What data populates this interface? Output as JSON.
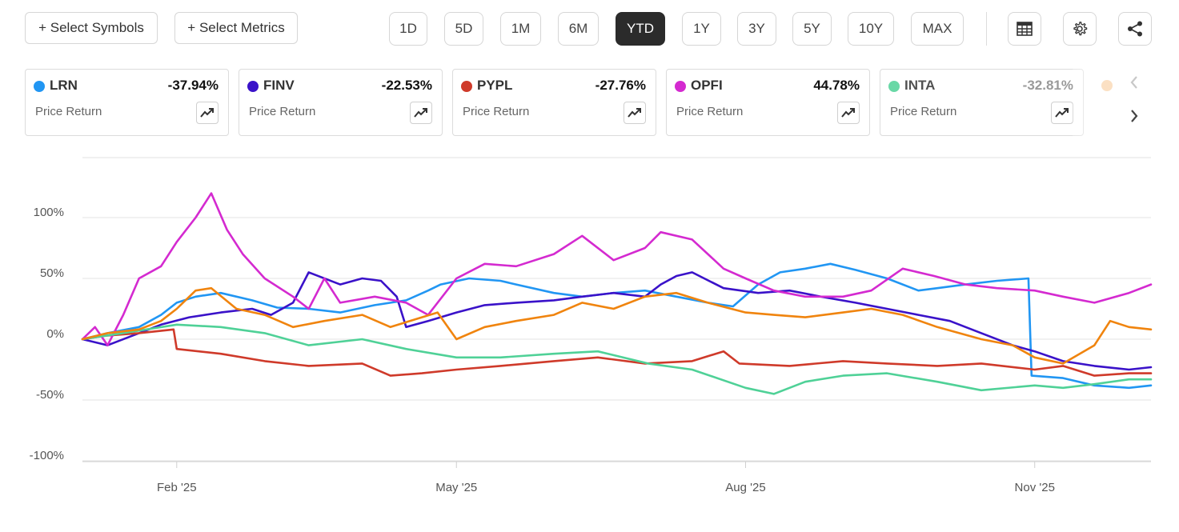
{
  "toolbar": {
    "select_symbols": "+ Select Symbols",
    "select_metrics": "+ Select Metrics",
    "ranges": [
      "1D",
      "5D",
      "1M",
      "6M",
      "YTD",
      "1Y",
      "3Y",
      "5Y",
      "10Y",
      "MAX"
    ],
    "active_range": "YTD",
    "icons": [
      "table-icon",
      "gear-icon",
      "share-icon"
    ]
  },
  "cards": [
    {
      "symbol": "LRN",
      "value": "-37.94%",
      "metric": "Price Return",
      "color": "#2196f3"
    },
    {
      "symbol": "FINV",
      "value": "-22.53%",
      "metric": "Price Return",
      "color": "#3a12c9"
    },
    {
      "symbol": "PYPL",
      "value": "-27.76%",
      "metric": "Price Return",
      "color": "#cf3a2a"
    },
    {
      "symbol": "OPFI",
      "value": "44.78%",
      "metric": "Price Return",
      "color": "#d42ad0"
    },
    {
      "symbol": "INTA",
      "value": "-32.81%",
      "metric": "Price Return",
      "color": "#4fd197"
    }
  ],
  "chart_data": {
    "type": "line",
    "y_ticks": [
      "100%",
      "50%",
      "0%",
      "-50%",
      "-100%"
    ],
    "x_ticks": [
      "Feb '25",
      "May '25",
      "Aug '25",
      "Nov '25"
    ],
    "ylim": [
      -100,
      150
    ],
    "xlim": [
      "2025-01-02",
      "2025-12-08"
    ],
    "legend": "none",
    "grid": "horizontal",
    "series": [
      {
        "name": "LRN",
        "color": "#2196f3",
        "points": [
          [
            "2025-01-02",
            0
          ],
          [
            "2025-01-10",
            5
          ],
          [
            "2025-01-20",
            10
          ],
          [
            "2025-01-27",
            20
          ],
          [
            "2025-02-01",
            30
          ],
          [
            "2025-02-07",
            35
          ],
          [
            "2025-02-15",
            38
          ],
          [
            "2025-02-25",
            32
          ],
          [
            "2025-03-05",
            26
          ],
          [
            "2025-03-15",
            25
          ],
          [
            "2025-03-25",
            22
          ],
          [
            "2025-04-05",
            28
          ],
          [
            "2025-04-15",
            32
          ],
          [
            "2025-04-22",
            40
          ],
          [
            "2025-04-26",
            45
          ],
          [
            "2025-05-05",
            50
          ],
          [
            "2025-05-15",
            48
          ],
          [
            "2025-05-20",
            45
          ],
          [
            "2025-06-01",
            38
          ],
          [
            "2025-06-10",
            35
          ],
          [
            "2025-06-20",
            38
          ],
          [
            "2025-06-30",
            40
          ],
          [
            "2025-07-10",
            35
          ],
          [
            "2025-07-20",
            30
          ],
          [
            "2025-07-28",
            27
          ],
          [
            "2025-08-05",
            45
          ],
          [
            "2025-08-12",
            55
          ],
          [
            "2025-08-20",
            58
          ],
          [
            "2025-08-28",
            62
          ],
          [
            "2025-09-05",
            57
          ],
          [
            "2025-09-15",
            50
          ],
          [
            "2025-09-25",
            40
          ],
          [
            "2025-10-01",
            42
          ],
          [
            "2025-10-10",
            45
          ],
          [
            "2025-10-20",
            48
          ],
          [
            "2025-10-30",
            50
          ],
          [
            "2025-10-31",
            -30
          ],
          [
            "2025-11-10",
            -32
          ],
          [
            "2025-11-20",
            -38
          ],
          [
            "2025-12-01",
            -40
          ],
          [
            "2025-12-08",
            -38
          ]
        ]
      },
      {
        "name": "FINV",
        "color": "#3a12c9",
        "points": [
          [
            "2025-01-02",
            0
          ],
          [
            "2025-01-10",
            -5
          ],
          [
            "2025-01-20",
            5
          ],
          [
            "2025-01-27",
            12
          ],
          [
            "2025-02-05",
            18
          ],
          [
            "2025-02-15",
            22
          ],
          [
            "2025-02-25",
            25
          ],
          [
            "2025-03-03",
            20
          ],
          [
            "2025-03-10",
            30
          ],
          [
            "2025-03-15",
            55
          ],
          [
            "2025-03-25",
            45
          ],
          [
            "2025-04-01",
            50
          ],
          [
            "2025-04-07",
            48
          ],
          [
            "2025-04-12",
            35
          ],
          [
            "2025-04-15",
            10
          ],
          [
            "2025-04-22",
            15
          ],
          [
            "2025-05-01",
            22
          ],
          [
            "2025-05-10",
            28
          ],
          [
            "2025-05-20",
            30
          ],
          [
            "2025-06-01",
            32
          ],
          [
            "2025-06-10",
            35
          ],
          [
            "2025-06-20",
            38
          ],
          [
            "2025-06-30",
            35
          ],
          [
            "2025-07-05",
            45
          ],
          [
            "2025-07-10",
            52
          ],
          [
            "2025-07-15",
            55
          ],
          [
            "2025-07-25",
            42
          ],
          [
            "2025-08-05",
            38
          ],
          [
            "2025-08-15",
            40
          ],
          [
            "2025-08-25",
            35
          ],
          [
            "2025-09-05",
            30
          ],
          [
            "2025-09-15",
            25
          ],
          [
            "2025-09-25",
            20
          ],
          [
            "2025-10-05",
            15
          ],
          [
            "2025-10-15",
            5
          ],
          [
            "2025-10-25",
            -5
          ],
          [
            "2025-11-01",
            -10
          ],
          [
            "2025-11-10",
            -18
          ],
          [
            "2025-11-20",
            -22
          ],
          [
            "2025-12-01",
            -25
          ],
          [
            "2025-12-08",
            -23
          ]
        ]
      },
      {
        "name": "PYPL",
        "color": "#cf3a2a",
        "points": [
          [
            "2025-01-02",
            0
          ],
          [
            "2025-01-10",
            3
          ],
          [
            "2025-01-20",
            5
          ],
          [
            "2025-01-31",
            8
          ],
          [
            "2025-02-01",
            -8
          ],
          [
            "2025-02-15",
            -12
          ],
          [
            "2025-03-01",
            -18
          ],
          [
            "2025-03-15",
            -22
          ],
          [
            "2025-04-01",
            -20
          ],
          [
            "2025-04-10",
            -30
          ],
          [
            "2025-04-20",
            -28
          ],
          [
            "2025-05-01",
            -25
          ],
          [
            "2025-05-15",
            -22
          ],
          [
            "2025-06-01",
            -18
          ],
          [
            "2025-06-15",
            -15
          ],
          [
            "2025-06-30",
            -20
          ],
          [
            "2025-07-15",
            -18
          ],
          [
            "2025-07-25",
            -10
          ],
          [
            "2025-07-30",
            -20
          ],
          [
            "2025-08-15",
            -22
          ],
          [
            "2025-09-01",
            -18
          ],
          [
            "2025-09-15",
            -20
          ],
          [
            "2025-10-01",
            -22
          ],
          [
            "2025-10-15",
            -20
          ],
          [
            "2025-11-01",
            -25
          ],
          [
            "2025-11-10",
            -22
          ],
          [
            "2025-11-20",
            -30
          ],
          [
            "2025-12-01",
            -28
          ],
          [
            "2025-12-08",
            -28
          ]
        ]
      },
      {
        "name": "OPFI",
        "color": "#d42ad0",
        "points": [
          [
            "2025-01-02",
            0
          ],
          [
            "2025-01-06",
            10
          ],
          [
            "2025-01-10",
            -5
          ],
          [
            "2025-01-15",
            20
          ],
          [
            "2025-01-20",
            50
          ],
          [
            "2025-01-27",
            60
          ],
          [
            "2025-02-01",
            80
          ],
          [
            "2025-02-07",
            100
          ],
          [
            "2025-02-12",
            120
          ],
          [
            "2025-02-17",
            90
          ],
          [
            "2025-02-22",
            70
          ],
          [
            "2025-03-01",
            50
          ],
          [
            "2025-03-10",
            35
          ],
          [
            "2025-03-15",
            25
          ],
          [
            "2025-03-20",
            50
          ],
          [
            "2025-03-25",
            30
          ],
          [
            "2025-04-05",
            35
          ],
          [
            "2025-04-15",
            30
          ],
          [
            "2025-04-22",
            20
          ],
          [
            "2025-05-01",
            50
          ],
          [
            "2025-05-10",
            62
          ],
          [
            "2025-05-20",
            60
          ],
          [
            "2025-06-01",
            70
          ],
          [
            "2025-06-10",
            85
          ],
          [
            "2025-06-20",
            65
          ],
          [
            "2025-06-30",
            75
          ],
          [
            "2025-07-05",
            88
          ],
          [
            "2025-07-15",
            82
          ],
          [
            "2025-07-25",
            58
          ],
          [
            "2025-08-01",
            50
          ],
          [
            "2025-08-10",
            40
          ],
          [
            "2025-08-20",
            35
          ],
          [
            "2025-09-01",
            35
          ],
          [
            "2025-09-10",
            40
          ],
          [
            "2025-09-20",
            58
          ],
          [
            "2025-09-30",
            52
          ],
          [
            "2025-10-10",
            45
          ],
          [
            "2025-10-20",
            42
          ],
          [
            "2025-11-01",
            40
          ],
          [
            "2025-11-10",
            35
          ],
          [
            "2025-11-20",
            30
          ],
          [
            "2025-12-01",
            38
          ],
          [
            "2025-12-08",
            45
          ]
        ]
      },
      {
        "name": "INTA",
        "color": "#4fd197",
        "points": [
          [
            "2025-01-02",
            0
          ],
          [
            "2025-01-15",
            5
          ],
          [
            "2025-02-01",
            12
          ],
          [
            "2025-02-15",
            10
          ],
          [
            "2025-03-01",
            5
          ],
          [
            "2025-03-15",
            -5
          ],
          [
            "2025-04-01",
            0
          ],
          [
            "2025-04-15",
            -8
          ],
          [
            "2025-05-01",
            -15
          ],
          [
            "2025-05-15",
            -15
          ],
          [
            "2025-06-01",
            -12
          ],
          [
            "2025-06-15",
            -10
          ],
          [
            "2025-07-01",
            -20
          ],
          [
            "2025-07-15",
            -25
          ],
          [
            "2025-08-01",
            -40
          ],
          [
            "2025-08-10",
            -45
          ],
          [
            "2025-08-20",
            -35
          ],
          [
            "2025-09-01",
            -30
          ],
          [
            "2025-09-15",
            -28
          ],
          [
            "2025-10-01",
            -35
          ],
          [
            "2025-10-15",
            -42
          ],
          [
            "2025-11-01",
            -38
          ],
          [
            "2025-11-10",
            -40
          ],
          [
            "2025-11-20",
            -37
          ],
          [
            "2025-12-01",
            -33
          ],
          [
            "2025-12-08",
            -33
          ]
        ]
      },
      {
        "name": "",
        "color": "#f0840e",
        "points": [
          [
            "2025-01-02",
            0
          ],
          [
            "2025-01-10",
            5
          ],
          [
            "2025-01-20",
            8
          ],
          [
            "2025-01-27",
            15
          ],
          [
            "2025-02-01",
            25
          ],
          [
            "2025-02-07",
            40
          ],
          [
            "2025-02-12",
            42
          ],
          [
            "2025-02-20",
            25
          ],
          [
            "2025-03-01",
            20
          ],
          [
            "2025-03-10",
            10
          ],
          [
            "2025-03-20",
            15
          ],
          [
            "2025-04-01",
            20
          ],
          [
            "2025-04-10",
            10
          ],
          [
            "2025-04-20",
            18
          ],
          [
            "2025-04-25",
            22
          ],
          [
            "2025-05-01",
            0
          ],
          [
            "2025-05-10",
            10
          ],
          [
            "2025-05-20",
            15
          ],
          [
            "2025-06-01",
            20
          ],
          [
            "2025-06-10",
            30
          ],
          [
            "2025-06-20",
            25
          ],
          [
            "2025-06-30",
            35
          ],
          [
            "2025-07-10",
            38
          ],
          [
            "2025-07-20",
            30
          ],
          [
            "2025-08-01",
            22
          ],
          [
            "2025-08-10",
            20
          ],
          [
            "2025-08-20",
            18
          ],
          [
            "2025-09-01",
            22
          ],
          [
            "2025-09-10",
            25
          ],
          [
            "2025-09-20",
            20
          ],
          [
            "2025-10-01",
            10
          ],
          [
            "2025-10-15",
            0
          ],
          [
            "2025-10-25",
            -5
          ],
          [
            "2025-11-01",
            -15
          ],
          [
            "2025-11-10",
            -20
          ],
          [
            "2025-11-20",
            -5
          ],
          [
            "2025-11-25",
            15
          ],
          [
            "2025-12-01",
            10
          ],
          [
            "2025-12-08",
            8
          ]
        ]
      }
    ]
  }
}
